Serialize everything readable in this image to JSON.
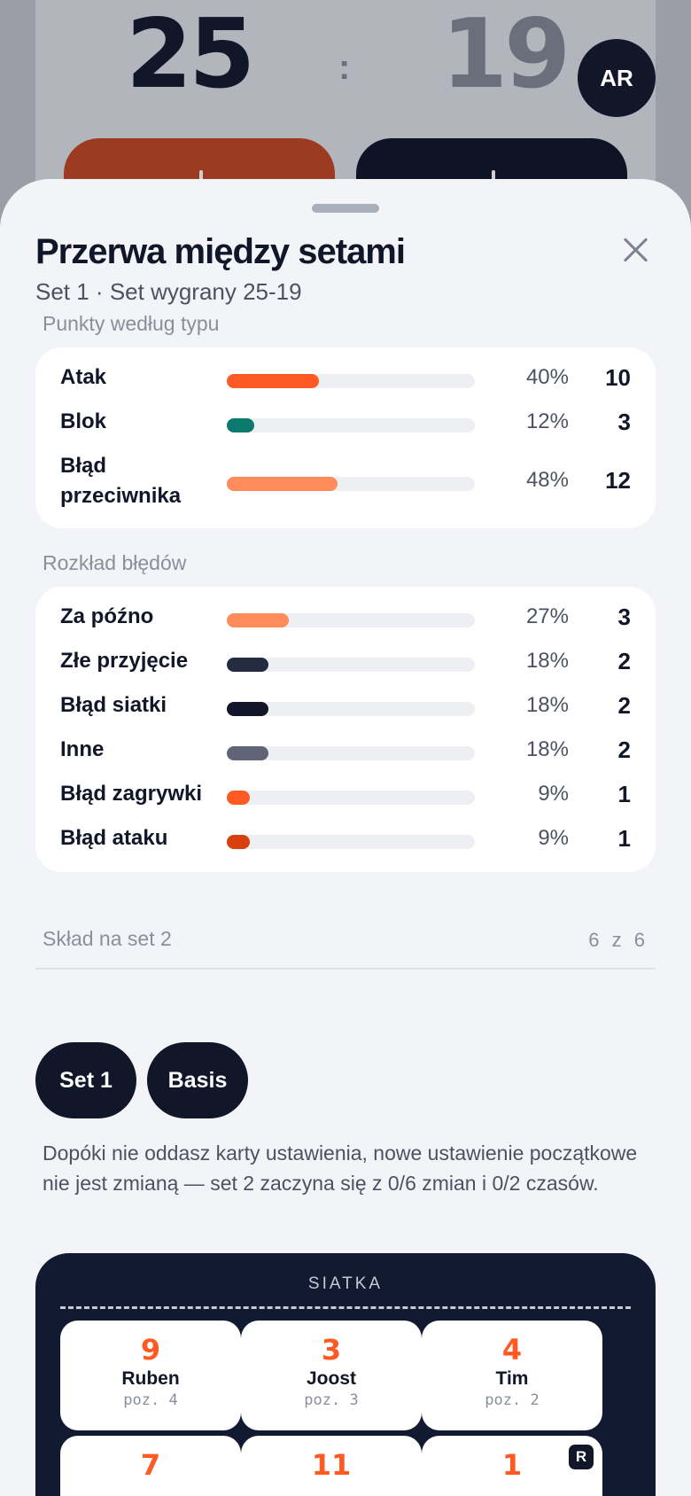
{
  "scoreboard": {
    "home": "25",
    "separator": ":",
    "away": "19",
    "avatar_initials": "AR"
  },
  "sheet": {
    "title": "Przerwa między setami",
    "subtitle": "Set 1 · Set wygrany 25-19"
  },
  "points_by_type": {
    "label": "Punkty według typu",
    "rows": [
      {
        "label": "Atak",
        "pct": "40%",
        "count": "10",
        "fraction": 0.4,
        "color": "#ff5a23"
      },
      {
        "label": "Blok",
        "pct": "12%",
        "count": "3",
        "fraction": 0.12,
        "color": "#0a7a6c"
      },
      {
        "label": "Błąd przeciwnika",
        "pct": "48%",
        "count": "12",
        "fraction": 0.48,
        "color": "#ff8c5a"
      }
    ]
  },
  "error_breakdown": {
    "label": "Rozkład błędów",
    "rows": [
      {
        "label": "Za późno",
        "pct": "27%",
        "count": "3",
        "fraction": 0.27,
        "color": "#ff8c5a"
      },
      {
        "label": "Złe przyjęcie",
        "pct": "18%",
        "count": "2",
        "fraction": 0.18,
        "color": "#252b40"
      },
      {
        "label": "Błąd siatki",
        "pct": "18%",
        "count": "2",
        "fraction": 0.18,
        "color": "#111629"
      },
      {
        "label": "Inne",
        "pct": "18%",
        "count": "2",
        "fraction": 0.18,
        "color": "#5f6577"
      },
      {
        "label": "Błąd zagrywki",
        "pct": "9%",
        "count": "1",
        "fraction": 0.09,
        "color": "#ff5a23"
      },
      {
        "label": "Błąd ataku",
        "pct": "9%",
        "count": "1",
        "fraction": 0.09,
        "color": "#d9400f"
      }
    ]
  },
  "lineup": {
    "label": "Skład na set 2",
    "count": "6 z 6",
    "buttons": [
      "Set 1",
      "Basis"
    ],
    "note": "Dopóki nie oddasz karty ustawienia, nowe ustawienie początkowe nie jest zmianą — set 2 zaczyna się z 0/6 zmian i 0/2 czasów.",
    "court_title": "SIATKA",
    "players": [
      {
        "number": "9",
        "name": "Ruben",
        "position": "poz. 4"
      },
      {
        "number": "3",
        "name": "Joost",
        "position": "poz. 3"
      },
      {
        "number": "4",
        "name": "Tim",
        "position": "poz. 2"
      },
      {
        "number": "7",
        "name": "",
        "position": ""
      },
      {
        "number": "11",
        "name": "",
        "position": ""
      },
      {
        "number": "1",
        "name": "",
        "position": "",
        "badge": "R"
      }
    ]
  }
}
